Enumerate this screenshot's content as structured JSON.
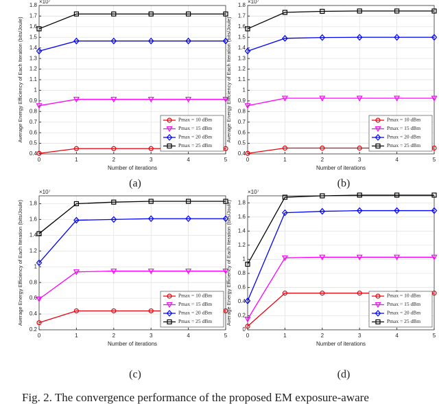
{
  "chart_data": [
    {
      "type": "line",
      "panel_label": "(a)",
      "xlabel": "Number of iterations",
      "ylabel": "Average Energy Efficiency of Each Iteration (bits/Joule)",
      "exponent_label": "×10⁷",
      "x": [
        0,
        1,
        2,
        3,
        4,
        5
      ],
      "xlim": [
        0,
        5
      ],
      "xticks": [
        0,
        1,
        2,
        3,
        4,
        5
      ],
      "ylim": [
        0.4,
        1.8
      ],
      "yticks": [
        0.4,
        0.5,
        0.6,
        0.7,
        0.8,
        0.9,
        1,
        1.1,
        1.2,
        1.3,
        1.4,
        1.5,
        1.6,
        1.7,
        1.8
      ],
      "grid": true,
      "legend": "lower right",
      "series": [
        {
          "name": "Pmax = 10 dBm",
          "color": "#e8000b",
          "marker": "circle",
          "values": [
            0.405,
            0.45,
            0.45,
            0.45,
            0.45,
            0.45
          ]
        },
        {
          "name": "Pmax = 15 dBm",
          "color": "#ff00ff",
          "marker": "triangle-down",
          "values": [
            0.855,
            0.915,
            0.915,
            0.915,
            0.915,
            0.915
          ]
        },
        {
          "name": "Pmax = 20 dBm",
          "color": "#0000ff",
          "marker": "diamond",
          "values": [
            1.37,
            1.465,
            1.465,
            1.465,
            1.465,
            1.465
          ]
        },
        {
          "name": "Pmax = 25 dBm",
          "color": "#000000",
          "marker": "square",
          "values": [
            1.58,
            1.72,
            1.72,
            1.72,
            1.72,
            1.72
          ]
        }
      ]
    },
    {
      "type": "line",
      "panel_label": "(b)",
      "xlabel": "Number of iterations",
      "ylabel": "Average Energy Efficiency of Each Iteration (bits/Joule)",
      "exponent_label": "×10⁷",
      "x": [
        0,
        1,
        2,
        3,
        4,
        5
      ],
      "xlim": [
        0,
        5
      ],
      "xticks": [
        0,
        1,
        2,
        3,
        4,
        5
      ],
      "ylim": [
        0.4,
        1.8
      ],
      "yticks": [
        0.4,
        0.5,
        0.6,
        0.7,
        0.8,
        0.9,
        1,
        1.1,
        1.2,
        1.3,
        1.4,
        1.5,
        1.6,
        1.7,
        1.8
      ],
      "grid": true,
      "legend": "lower right",
      "series": [
        {
          "name": "Pmax = 10 dBm",
          "color": "#e8000b",
          "marker": "circle",
          "values": [
            0.405,
            0.455,
            0.455,
            0.455,
            0.455,
            0.455
          ]
        },
        {
          "name": "Pmax = 15 dBm",
          "color": "#ff00ff",
          "marker": "triangle-down",
          "values": [
            0.855,
            0.925,
            0.925,
            0.925,
            0.925,
            0.925
          ]
        },
        {
          "name": "Pmax = 20 dBm",
          "color": "#0000ff",
          "marker": "diamond",
          "values": [
            1.37,
            1.49,
            1.498,
            1.5,
            1.5,
            1.5
          ]
        },
        {
          "name": "Pmax = 25 dBm",
          "color": "#000000",
          "marker": "square",
          "values": [
            1.58,
            1.735,
            1.745,
            1.748,
            1.748,
            1.748
          ]
        }
      ]
    },
    {
      "type": "line",
      "panel_label": "(c)",
      "xlabel": "Number of iterations",
      "ylabel": "Average Energy Efficiency of Each Iteration (bits/Joule)",
      "exponent_label": "×10⁷",
      "x": [
        0,
        1,
        2,
        3,
        4,
        5
      ],
      "xlim": [
        0,
        5
      ],
      "xticks": [
        0,
        1,
        2,
        3,
        4,
        5
      ],
      "ylim": [
        0.2,
        1.9
      ],
      "yticks": [
        0.2,
        0.4,
        0.6,
        0.8,
        1,
        1.2,
        1.4,
        1.6,
        1.8
      ],
      "grid": true,
      "legend": "lower right",
      "series": [
        {
          "name": "Pmax = 10 dBm",
          "color": "#e8000b",
          "marker": "circle",
          "values": [
            0.29,
            0.44,
            0.44,
            0.44,
            0.44,
            0.44
          ]
        },
        {
          "name": "Pmax = 15 dBm",
          "color": "#ff00ff",
          "marker": "triangle-down",
          "values": [
            0.59,
            0.935,
            0.945,
            0.945,
            0.945,
            0.945
          ]
        },
        {
          "name": "Pmax = 20 dBm",
          "color": "#0000ff",
          "marker": "diamond",
          "values": [
            1.05,
            1.59,
            1.6,
            1.61,
            1.61,
            1.61
          ]
        },
        {
          "name": "Pmax = 25 dBm",
          "color": "#000000",
          "marker": "square",
          "values": [
            1.42,
            1.8,
            1.82,
            1.83,
            1.83,
            1.83
          ]
        }
      ]
    },
    {
      "type": "line",
      "panel_label": "(d)",
      "xlabel": "Number of iterations",
      "ylabel": "Average Energy Efficiency of Each Iteration (bits/Joule)",
      "exponent_label": "×10⁷",
      "x": [
        0,
        1,
        2,
        3,
        4,
        5
      ],
      "xlim": [
        0,
        5
      ],
      "xticks": [
        0,
        1,
        2,
        3,
        4,
        5
      ],
      "ylim": [
        0,
        1.9
      ],
      "yticks": [
        0,
        0.2,
        0.4,
        0.6,
        0.8,
        1,
        1.2,
        1.4,
        1.6,
        1.8
      ],
      "grid": true,
      "legend": "lower right",
      "series": [
        {
          "name": "Pmax = 10 dBm",
          "color": "#e8000b",
          "marker": "circle",
          "values": [
            0.05,
            0.52,
            0.52,
            0.52,
            0.52,
            0.52
          ]
        },
        {
          "name": "Pmax = 15 dBm",
          "color": "#ff00ff",
          "marker": "triangle-down",
          "values": [
            0.15,
            1.02,
            1.03,
            1.03,
            1.03,
            1.03
          ]
        },
        {
          "name": "Pmax = 20 dBm",
          "color": "#0000ff",
          "marker": "diamond",
          "values": [
            0.41,
            1.66,
            1.68,
            1.69,
            1.69,
            1.69
          ]
        },
        {
          "name": "Pmax = 25 dBm",
          "color": "#000000",
          "marker": "square",
          "values": [
            0.93,
            1.88,
            1.9,
            1.91,
            1.91,
            1.91
          ]
        }
      ]
    }
  ],
  "caption": "Fig. 2.  The convergence performance of the proposed EM exposure-aware"
}
